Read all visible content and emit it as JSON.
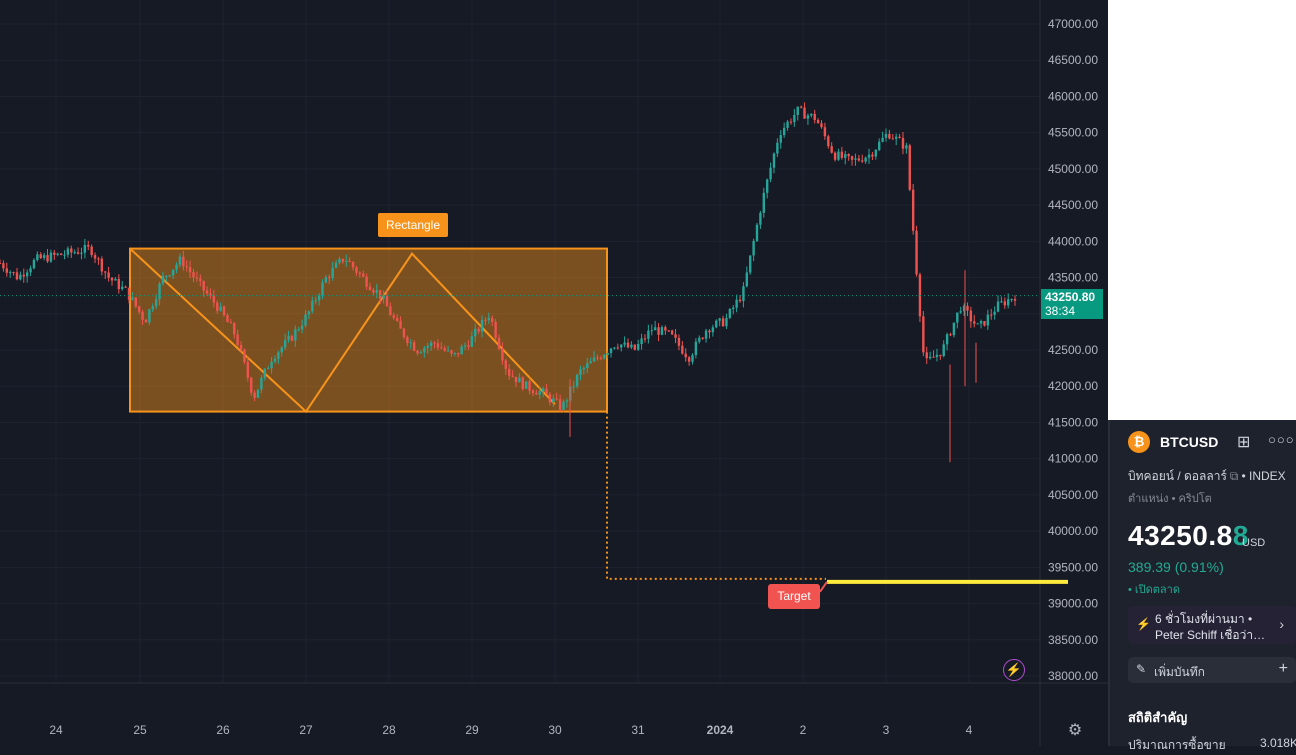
{
  "symbol": {
    "ticker": "BTCUSD",
    "icon": "bitcoin-icon",
    "name": "บิทคอยน์ / ดอลลาร์",
    "exchange": "INDEX",
    "category": "ตำแหน่ง • คริปโต",
    "price_main": "43250.8",
    "price_last_digit": "8",
    "currency": "USD",
    "change": "389.39 (0.91%)",
    "market_status": "• เปิดตลาด"
  },
  "news": {
    "line1": "6 ชั่วโมงที่ผ่านมา •",
    "line2": "Peter Schiff เชื่อว่า…"
  },
  "note_button": "เพิ่มบันทึก",
  "stats": {
    "title": "สถิติสำคัญ",
    "row_label": "ปริมาณการซื้อขาย",
    "row_value": "3.018K"
  },
  "price_axis": {
    "ticks": [
      "47000.00",
      "46500.00",
      "46000.00",
      "45500.00",
      "45000.00",
      "44500.00",
      "44000.00",
      "43500.00",
      "43000.00",
      "42500.00",
      "42000.00",
      "41500.00",
      "41000.00",
      "40500.00",
      "40000.00",
      "39500.00",
      "39000.00",
      "38500.00",
      "38000.00"
    ],
    "current_price": "43250.80",
    "countdown": "38:34"
  },
  "time_axis": {
    "ticks": [
      "24",
      "25",
      "26",
      "27",
      "28",
      "29",
      "30",
      "31",
      "2024",
      "2",
      "3",
      "4"
    ]
  },
  "drawings": {
    "rectangle_label": "Rectangle",
    "target_label": "Target"
  },
  "colors": {
    "background": "#161a25",
    "up": "#26a69a",
    "down": "#ef5350",
    "rectangle": "#f7931a",
    "target_line": "#ffeb3b",
    "current_price": "#089981"
  },
  "chart_data": {
    "type": "candlestick",
    "y_range": [
      37850,
      47150
    ],
    "x": [
      "24",
      "25",
      "26",
      "27",
      "28",
      "29",
      "30",
      "31",
      "2024",
      "2",
      "3",
      "4"
    ],
    "close_path": [
      43700,
      43500,
      43750,
      43800,
      43850,
      43900,
      43500,
      43300,
      42900,
      43500,
      43750,
      43400,
      43100,
      42700,
      41850,
      42400,
      42650,
      43000,
      43500,
      43780,
      43500,
      43250,
      42800,
      42500,
      42600,
      42400,
      42650,
      43000,
      42200,
      42000,
      41900,
      41700,
      42200,
      42400,
      42600,
      42500,
      42800,
      42700,
      42400,
      42800,
      42900,
      43300,
      44500,
      45500,
      45800,
      45700,
      45200,
      45100,
      45200,
      45500,
      45300,
      42300,
      42500,
      43100,
      42800,
      43100,
      43250
    ],
    "rectangle": {
      "top": 43900,
      "bottom": 41650
    },
    "target": 39300,
    "current_price": 43250.8
  }
}
